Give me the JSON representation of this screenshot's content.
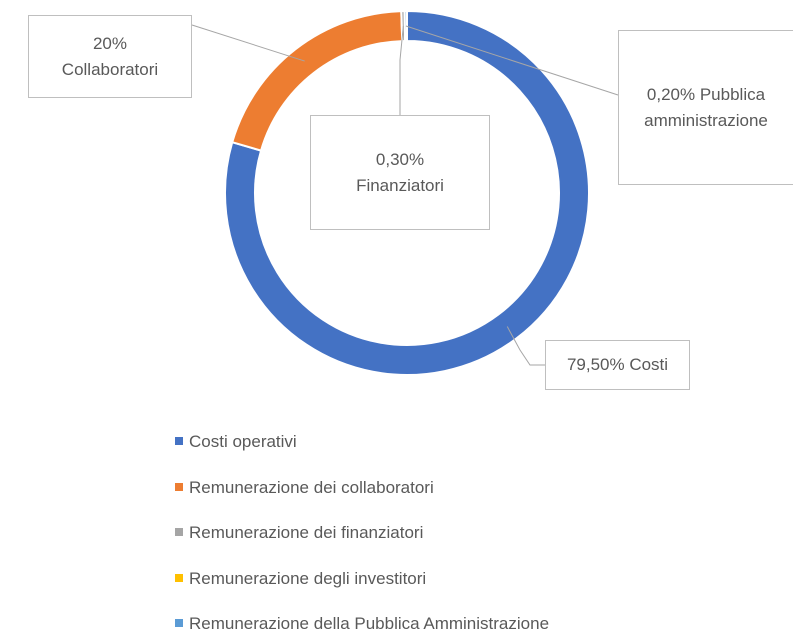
{
  "chart_data": {
    "type": "donut",
    "categories": [
      "Costi operativi",
      "Remunerazione dei collaboratori",
      "Remunerazione dei finanziatori",
      "Remunerazione degli investitori",
      "Remunerazione della Pubblica Amministrazione"
    ],
    "values": [
      79.5,
      20,
      0.3,
      0,
      0.2
    ],
    "value_labels": [
      "79,50% Costi",
      "20%\nCollaboratori",
      "0,30%\nFinanziatori",
      null,
      "0,20% Pubblica\namministrazione"
    ],
    "colors": [
      "#4472c4",
      "#ed7d31",
      "#a5a5a5",
      "#ffc000",
      "#5b9bd5"
    ],
    "legend": "bottom"
  }
}
